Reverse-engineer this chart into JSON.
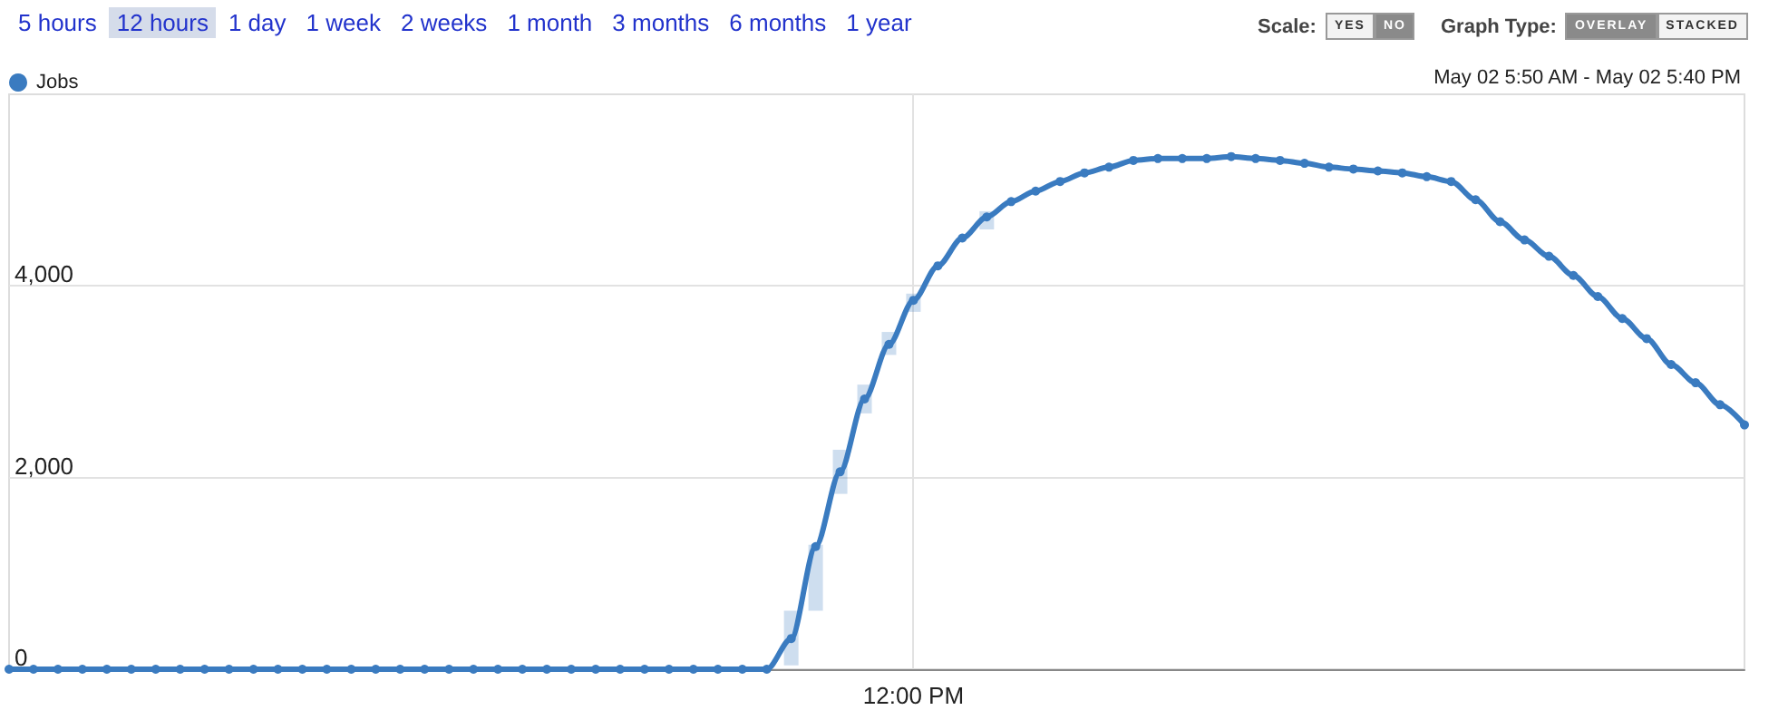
{
  "chart_data": {
    "type": "line",
    "annotations": [
      "5 hours",
      "12 hours",
      "1 day",
      "1 week",
      "2 weeks",
      "1 month",
      "3 months",
      "6 months",
      "1 year",
      "Scale:",
      "YES",
      "NO",
      "Graph Type:",
      "OVERLAY",
      "STACKED",
      "May 02  5:50 AM - May 02  5:40 PM"
    ],
    "categories": [
      null,
      null,
      null,
      null,
      null,
      null,
      null,
      null,
      null,
      null,
      null,
      null,
      null,
      null,
      null,
      null,
      null,
      null,
      null,
      null,
      null,
      null,
      null,
      null,
      null,
      null,
      null,
      null,
      null,
      null,
      null,
      null,
      null,
      null,
      null,
      null,
      null,
      "12:00 PM",
      null,
      null,
      null,
      null,
      null,
      null,
      null,
      null,
      null,
      null,
      null,
      null,
      null,
      null,
      null,
      null,
      null,
      null,
      null,
      null,
      null,
      null,
      null,
      null,
      null,
      null,
      null,
      null,
      null,
      null,
      null,
      null,
      null,
      null
    ],
    "series": [
      {
        "name": "Jobs",
        "color": "#3a7bc0",
        "values": [
          0,
          0,
          0,
          0,
          0,
          0,
          0,
          0,
          0,
          0,
          0,
          0,
          0,
          0,
          0,
          0,
          0,
          0,
          0,
          0,
          0,
          0,
          0,
          0,
          0,
          0,
          0,
          0,
          0,
          0,
          0,
          0,
          320,
          1280,
          2060,
          2820,
          3390,
          3850,
          4210,
          4500,
          4720,
          4880,
          4990,
          5090,
          5180,
          5240,
          5310,
          5330,
          5330,
          5330,
          5350,
          5330,
          5310,
          5280,
          5240,
          5220,
          5200,
          5180,
          5140,
          5090,
          4900,
          4670,
          4480,
          4310,
          4110,
          3890,
          3660,
          3450,
          3180,
          2990,
          2760,
          2550
        ],
        "errors": [
          null,
          null,
          null,
          null,
          null,
          null,
          null,
          null,
          null,
          null,
          null,
          null,
          null,
          null,
          null,
          null,
          null,
          null,
          null,
          null,
          null,
          null,
          null,
          null,
          null,
          null,
          null,
          null,
          null,
          null,
          null,
          null,
          [
            40,
            610
          ],
          [
            610,
            1300
          ],
          [
            1830,
            2290
          ],
          [
            2670,
            2970
          ],
          [
            3280,
            3520
          ],
          [
            3730,
            3920
          ],
          null,
          null,
          [
            4590,
            4780
          ],
          null,
          null,
          null,
          null,
          null,
          null,
          null,
          null,
          null,
          null,
          null,
          null,
          null,
          null,
          null,
          null,
          null,
          null,
          null,
          null,
          null,
          null,
          null,
          null,
          null,
          null,
          null,
          null,
          null,
          null,
          null
        ]
      }
    ],
    "ylim": [
      0,
      6000
    ],
    "yticks": [
      0,
      {
        "value": 2000,
        "label": "2,000"
      },
      {
        "value": 4000,
        "label": "4,000"
      }
    ],
    "grid": true,
    "legend": "top left",
    "marker": "circle"
  }
}
